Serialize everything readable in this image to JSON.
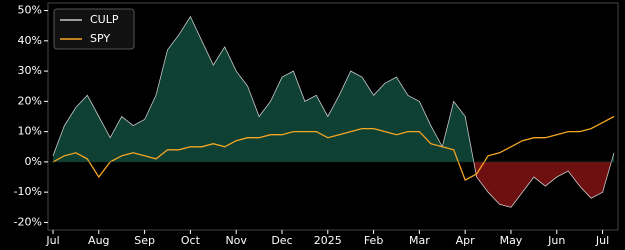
{
  "chart_data": {
    "type": "line",
    "categories": [
      "Jul",
      null,
      null,
      null,
      "Aug",
      null,
      null,
      null,
      "Sep",
      null,
      null,
      null,
      "Oct",
      null,
      null,
      null,
      "Nov",
      null,
      null,
      null,
      "Dec",
      null,
      null,
      null,
      "2025",
      null,
      null,
      null,
      "Feb",
      null,
      null,
      null,
      "Mar",
      null,
      null,
      null,
      "Apr",
      null,
      null,
      null,
      "May",
      null,
      null,
      null,
      "Jun",
      null,
      null,
      null,
      "Jul",
      null
    ],
    "series": [
      {
        "name": "CULP",
        "color": "#c8c8c8",
        "fill_positive": "#0e4034",
        "fill_negative": "#6e0f10",
        "values": [
          2,
          12,
          18,
          22,
          15,
          8,
          15,
          12,
          14,
          22,
          37,
          42,
          48,
          40,
          32,
          38,
          30,
          25,
          15,
          20,
          28,
          30,
          20,
          22,
          15,
          22,
          30,
          28,
          22,
          26,
          28,
          22,
          20,
          12,
          5,
          20,
          15,
          -5,
          -10,
          -14,
          -15,
          -10,
          -5,
          -8,
          -5,
          -3,
          -8,
          -12,
          -10,
          3
        ]
      },
      {
        "name": "SPY",
        "color": "#f5a623",
        "values": [
          0,
          2,
          3,
          1,
          -5,
          0,
          2,
          3,
          2,
          1,
          4,
          4,
          5,
          5,
          6,
          5,
          7,
          8,
          8,
          9,
          9,
          10,
          10,
          10,
          8,
          9,
          10,
          11,
          11,
          10,
          9,
          10,
          10,
          6,
          5,
          4,
          -6,
          -4,
          2,
          3,
          5,
          7,
          8,
          8,
          9,
          10,
          10,
          11,
          13,
          15
        ]
      }
    ],
    "ylim": [
      -22.5,
      52.5
    ],
    "yticks": [
      {
        "value": -20,
        "label": "-20%"
      },
      {
        "value": -10,
        "label": "-10%"
      },
      {
        "value": 0,
        "label": "0%"
      },
      {
        "value": 10,
        "label": "10%"
      },
      {
        "value": 20,
        "label": "20%"
      },
      {
        "value": 30,
        "label": "30%"
      },
      {
        "value": 40,
        "label": "40%"
      },
      {
        "value": 50,
        "label": "50%"
      }
    ],
    "legend": "upper left"
  }
}
